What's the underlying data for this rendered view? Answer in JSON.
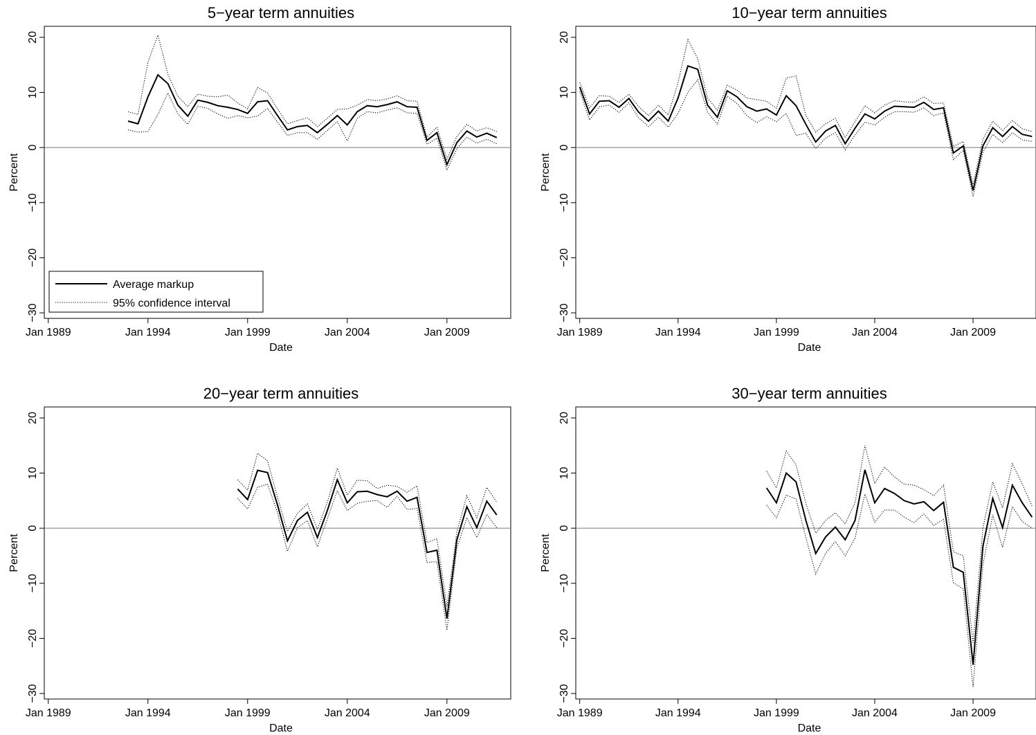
{
  "figure": {
    "legend_entries": [
      "Average markup",
      "95% confidence interval"
    ],
    "legend_placement": "bottom-left of first panel"
  },
  "chart_data": [
    {
      "type": "line",
      "title": "5−year term annuities",
      "xlabel": "Date",
      "ylabel": "Percent",
      "xlim": [
        1988.8,
        2012.2
      ],
      "ylim": [
        -31,
        22
      ],
      "x_ticks": [
        1989,
        1994,
        1999,
        2004,
        2009
      ],
      "x_tick_labels": [
        "Jan 1989",
        "Jan 1994",
        "Jan 1999",
        "Jan 2004",
        "Jan 2009"
      ],
      "y_ticks": [
        20,
        10,
        0,
        -10,
        -20,
        -30
      ],
      "y_tick_labels": [
        "20",
        "10",
        "0",
        "−10",
        "−20",
        "−30"
      ],
      "reference_line_y": 0,
      "grid": false,
      "legend": true,
      "x": [
        1993.0,
        1993.5,
        1994.0,
        1994.5,
        1995.0,
        1995.5,
        1996.0,
        1996.5,
        1997.0,
        1997.5,
        1998.0,
        1998.5,
        1999.0,
        1999.5,
        2000.0,
        2000.5,
        2001.0,
        2001.5,
        2002.0,
        2002.5,
        2003.0,
        2003.5,
        2004.0,
        2004.5,
        2005.0,
        2005.5,
        2006.0,
        2006.5,
        2007.0,
        2007.5,
        2008.0,
        2008.5,
        2009.0,
        2009.5,
        2010.0,
        2010.5,
        2011.0,
        2011.5
      ],
      "series": [
        {
          "name": "Average markup",
          "style": "solid",
          "values": [
            4.8,
            4.3,
            9.2,
            13.2,
            11.6,
            7.7,
            5.7,
            8.6,
            8.2,
            7.6,
            7.3,
            6.9,
            6.2,
            8.3,
            8.5,
            5.8,
            3.2,
            3.8,
            4.0,
            2.7,
            4.2,
            5.8,
            4.1,
            6.5,
            7.6,
            7.4,
            7.8,
            8.3,
            7.4,
            7.3,
            1.3,
            2.7,
            -3.1,
            0.9,
            3.0,
            1.9,
            2.6,
            1.8
          ]
        },
        {
          "name": "95% confidence interval",
          "style": "dotted",
          "values": [
            6.5,
            6.0,
            15.5,
            20.4,
            13.3,
            9.3,
            7.4,
            9.7,
            9.3,
            9.2,
            9.5,
            8.1,
            7.0,
            10.9,
            9.9,
            7.0,
            4.3,
            4.9,
            5.4,
            3.8,
            5.3,
            6.9,
            7.0,
            7.7,
            8.7,
            8.5,
            8.8,
            9.4,
            8.5,
            8.4,
            1.9,
            3.7,
            -2.1,
            2.0,
            4.2,
            3.0,
            3.6,
            2.9
          ]
        },
        {
          "name": "95% confidence interval",
          "style": "dotted",
          "values": [
            3.2,
            2.8,
            2.9,
            6.0,
            9.9,
            6.1,
            4.2,
            7.5,
            7.1,
            6.1,
            5.3,
            5.8,
            5.4,
            5.7,
            7.1,
            4.6,
            2.2,
            2.7,
            2.7,
            1.5,
            3.1,
            4.7,
            1.2,
            5.3,
            6.5,
            6.3,
            6.8,
            7.2,
            6.3,
            6.2,
            0.6,
            1.7,
            -4.1,
            -0.2,
            1.9,
            0.8,
            1.5,
            0.7
          ]
        }
      ]
    },
    {
      "type": "line",
      "title": "10−year term annuities",
      "xlabel": "Date",
      "ylabel": "Percent",
      "xlim": [
        1988.8,
        2012.2
      ],
      "ylim": [
        -31,
        22
      ],
      "x_ticks": [
        1989,
        1994,
        1999,
        2004,
        2009
      ],
      "x_tick_labels": [
        "Jan 1989",
        "Jan 1994",
        "Jan 1999",
        "Jan 2004",
        "Jan 2009"
      ],
      "y_ticks": [
        20,
        10,
        0,
        -10,
        -20,
        -30
      ],
      "y_tick_labels": [
        "20",
        "10",
        "0",
        "−10",
        "−20",
        "−30"
      ],
      "reference_line_y": 0,
      "grid": false,
      "legend": false,
      "x": [
        1989.0,
        1989.5,
        1990.0,
        1990.5,
        1991.0,
        1991.5,
        1992.0,
        1992.5,
        1993.0,
        1993.5,
        1994.0,
        1994.5,
        1995.0,
        1995.5,
        1996.0,
        1996.5,
        1997.0,
        1997.5,
        1998.0,
        1998.5,
        1999.0,
        1999.5,
        2000.0,
        2000.5,
        2001.0,
        2001.5,
        2002.0,
        2002.5,
        2003.0,
        2003.5,
        2004.0,
        2004.5,
        2005.0,
        2005.5,
        2006.0,
        2006.5,
        2007.0,
        2007.5,
        2008.0,
        2008.5,
        2009.0,
        2009.5,
        2010.0,
        2010.5,
        2011.0,
        2011.5,
        2012.0
      ],
      "series": [
        {
          "name": "Average markup",
          "style": "solid",
          "values": [
            11.0,
            6.1,
            8.4,
            8.5,
            7.3,
            8.9,
            6.4,
            4.8,
            6.6,
            4.8,
            9.0,
            14.8,
            14.2,
            7.7,
            5.5,
            10.3,
            9.2,
            7.4,
            6.6,
            7.0,
            5.9,
            9.4,
            7.6,
            4.2,
            1.0,
            3.0,
            4.0,
            0.7,
            3.5,
            6.1,
            5.2,
            6.6,
            7.5,
            7.4,
            7.3,
            8.2,
            6.9,
            7.2,
            -1.0,
            0.3,
            -7.8,
            0.3,
            3.6,
            2.0,
            3.8,
            2.4,
            2.0
          ]
        },
        {
          "name": "95% confidence interval",
          "style": "dotted",
          "values": [
            11.8,
            7.2,
            9.4,
            9.3,
            8.2,
            9.7,
            7.4,
            5.8,
            7.7,
            5.9,
            11.8,
            19.6,
            16.1,
            9.0,
            6.8,
            11.3,
            10.4,
            9.0,
            8.7,
            8.4,
            7.1,
            12.6,
            13.0,
            5.8,
            2.8,
            4.3,
            5.3,
            1.8,
            4.7,
            7.6,
            6.3,
            7.7,
            8.5,
            8.3,
            8.2,
            9.2,
            8.0,
            8.1,
            0.2,
            1.1,
            -6.7,
            1.5,
            4.8,
            3.1,
            4.9,
            3.4,
            2.9
          ]
        },
        {
          "name": "95% confidence interval",
          "style": "dotted",
          "values": [
            10.2,
            5.0,
            7.4,
            7.7,
            6.4,
            8.1,
            5.4,
            3.8,
            5.5,
            3.7,
            6.2,
            10.0,
            12.3,
            6.4,
            4.2,
            9.3,
            8.0,
            5.8,
            4.5,
            5.6,
            4.7,
            6.2,
            2.2,
            2.6,
            -0.2,
            1.7,
            2.7,
            -0.4,
            2.3,
            4.6,
            4.1,
            5.5,
            6.5,
            6.5,
            6.4,
            7.2,
            5.8,
            6.3,
            -2.2,
            -0.5,
            -8.9,
            -0.9,
            2.4,
            0.9,
            2.7,
            1.4,
            1.1
          ]
        }
      ]
    },
    {
      "type": "line",
      "title": "20−year term annuities",
      "xlabel": "Date",
      "ylabel": "Percent",
      "xlim": [
        1988.8,
        2012.2
      ],
      "ylim": [
        -31,
        22
      ],
      "x_ticks": [
        1989,
        1994,
        1999,
        2004,
        2009
      ],
      "x_tick_labels": [
        "Jan 1989",
        "Jan 1994",
        "Jan 1999",
        "Jan 2004",
        "Jan 2009"
      ],
      "y_ticks": [
        20,
        10,
        0,
        -10,
        -20,
        -30
      ],
      "y_tick_labels": [
        "20",
        "10",
        "0",
        "−10",
        "−20",
        "−30"
      ],
      "reference_line_y": 0,
      "grid": false,
      "legend": false,
      "x": [
        1998.5,
        1999.0,
        1999.5,
        2000.0,
        2000.5,
        2001.0,
        2001.5,
        2002.0,
        2002.5,
        2003.0,
        2003.5,
        2004.0,
        2004.5,
        2005.0,
        2005.5,
        2006.0,
        2006.5,
        2007.0,
        2007.5,
        2008.0,
        2008.5,
        2009.0,
        2009.5,
        2010.0,
        2010.5,
        2011.0,
        2011.5
      ],
      "series": [
        {
          "name": "Average markup",
          "style": "solid",
          "values": [
            7.1,
            5.2,
            10.5,
            10.1,
            4.2,
            -2.3,
            1.4,
            2.9,
            -1.7,
            3.2,
            8.8,
            4.6,
            6.6,
            6.7,
            6.1,
            5.7,
            6.7,
            4.9,
            5.6,
            -4.4,
            -4.0,
            -16.4,
            -2.1,
            3.9,
            0.1,
            4.9,
            2.4
          ]
        },
        {
          "name": "95% confidence interval",
          "style": "dotted",
          "values": [
            8.8,
            6.9,
            13.6,
            12.2,
            5.6,
            -0.6,
            2.7,
            4.4,
            -0.2,
            4.7,
            10.9,
            6.0,
            8.7,
            8.6,
            7.2,
            7.8,
            7.6,
            6.5,
            7.7,
            -2.6,
            -1.9,
            -14.2,
            -0.6,
            5.9,
            1.9,
            7.4,
            4.7
          ]
        },
        {
          "name": "95% confidence interval",
          "style": "dotted",
          "values": [
            5.4,
            3.5,
            7.4,
            8.0,
            2.8,
            -4.2,
            0.1,
            1.4,
            -3.4,
            1.7,
            6.8,
            3.2,
            4.5,
            4.9,
            5.0,
            3.8,
            5.8,
            3.4,
            3.6,
            -6.2,
            -6.1,
            -18.5,
            -3.6,
            1.9,
            -1.7,
            2.5,
            0.1
          ]
        }
      ]
    },
    {
      "type": "line",
      "title": "30−year term annuities",
      "xlabel": "Date",
      "ylabel": "Percent",
      "xlim": [
        1988.8,
        2012.2
      ],
      "ylim": [
        -31,
        22
      ],
      "x_ticks": [
        1989,
        1994,
        1999,
        2004,
        2009
      ],
      "x_tick_labels": [
        "Jan 1989",
        "Jan 1994",
        "Jan 1999",
        "Jan 2004",
        "Jan 2009"
      ],
      "y_ticks": [
        20,
        10,
        0,
        -10,
        -20,
        -30
      ],
      "y_tick_labels": [
        "20",
        "10",
        "0",
        "−10",
        "−20",
        "−30"
      ],
      "reference_line_y": 0,
      "grid": false,
      "legend": false,
      "x": [
        1998.5,
        1999.0,
        1999.5,
        2000.0,
        2000.5,
        2001.0,
        2001.5,
        2002.0,
        2002.5,
        2003.0,
        2003.5,
        2004.0,
        2004.5,
        2005.0,
        2005.5,
        2006.0,
        2006.5,
        2007.0,
        2007.5,
        2008.0,
        2008.5,
        2009.0,
        2009.5,
        2010.0,
        2010.5,
        2011.0,
        2011.5,
        2012.0
      ],
      "series": [
        {
          "name": "Average markup",
          "style": "solid",
          "values": [
            7.3,
            4.6,
            10.0,
            8.4,
            1.4,
            -4.6,
            -1.6,
            0.2,
            -2.1,
            1.4,
            10.6,
            4.6,
            7.2,
            6.3,
            5.0,
            4.4,
            4.8,
            3.2,
            4.7,
            -7.1,
            -8.0,
            -24.8,
            -3.3,
            5.4,
            0.1,
            7.8,
            4.6,
            2.0
          ]
        },
        {
          "name": "95% confidence interval",
          "style": "dotted",
          "values": [
            10.4,
            7.3,
            14.0,
            11.5,
            4.5,
            -0.9,
            1.4,
            2.8,
            0.8,
            4.6,
            15.0,
            8.1,
            11.1,
            9.3,
            8.0,
            7.8,
            7.0,
            5.9,
            7.8,
            -4.3,
            -5.0,
            -20.8,
            0.0,
            8.4,
            3.7,
            11.7,
            8.0,
            4.0
          ]
        },
        {
          "name": "95% confidence interval",
          "style": "dotted",
          "values": [
            4.2,
            1.9,
            6.0,
            5.3,
            -1.7,
            -8.3,
            -4.6,
            -2.4,
            -5.0,
            -1.8,
            6.2,
            1.1,
            3.3,
            3.3,
            2.0,
            1.0,
            2.6,
            0.5,
            1.6,
            -9.9,
            -11.0,
            -28.8,
            -6.6,
            2.4,
            -3.5,
            3.9,
            1.2,
            0.0
          ]
        }
      ]
    }
  ]
}
